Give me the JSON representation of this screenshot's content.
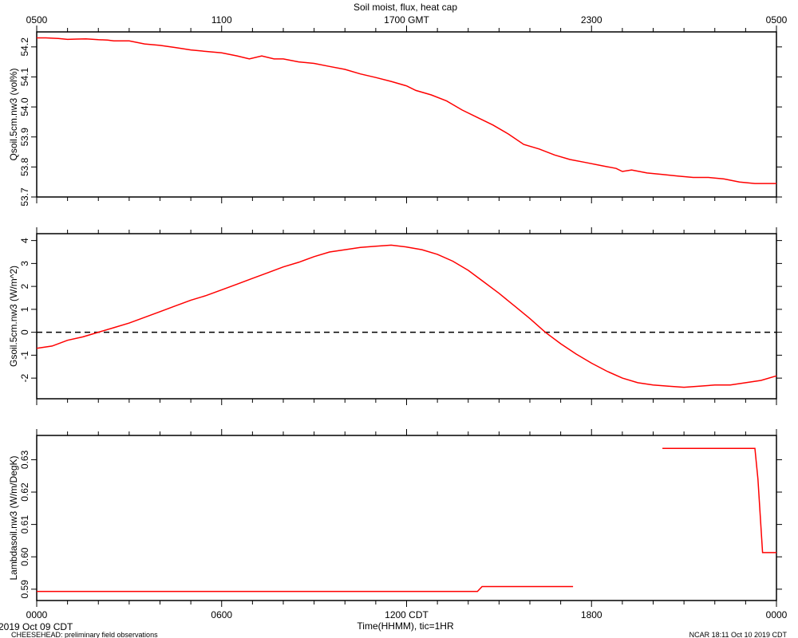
{
  "title": "Soil moist, flux, heat cap",
  "top_axis": {
    "tick_labels": [
      "0500",
      "1100",
      "1700 GMT",
      "2300",
      "0500"
    ]
  },
  "bottom_axis": {
    "tick_labels": [
      "0000",
      "0600",
      "1200 CDT",
      "1800",
      "0000"
    ],
    "label": "Time(HHMM), tic=1HR"
  },
  "footer": {
    "date": "2019 Oct 09 CDT",
    "project": "CHEESEHEAD: preliminary field observations",
    "stamp": "NCAR 18:11 Oct 10 2019 CDT"
  },
  "colors": {
    "series": "#ff0000",
    "axes": "#000000"
  },
  "chart_data": [
    {
      "type": "line",
      "ylabel": "Qsoil.5cm.nw3 (vol%)",
      "ylim": [
        53.7,
        54.25
      ],
      "yticks": [
        53.7,
        53.8,
        53.9,
        54.0,
        54.1,
        54.2
      ],
      "ytick_labels": [
        "53.7",
        "53.8",
        "53.9",
        "54.0",
        "54.1",
        "54.2"
      ],
      "xlim": [
        0,
        24
      ],
      "series": [
        {
          "x": [
            0,
            0.3,
            0.7,
            1.0,
            1.3,
            1.6,
            2.0,
            2.3,
            2.5,
            3.0,
            3.5,
            4.0,
            4.5,
            5.0,
            5.5,
            6.0,
            6.5,
            6.9,
            7.3,
            7.7,
            8.0,
            8.5,
            9.0,
            9.5,
            10.0,
            10.5,
            11.0,
            11.5,
            12.0,
            12.3,
            12.8,
            13.3,
            13.8,
            14.3,
            14.8,
            15.3,
            15.8,
            16.3,
            16.8,
            17.3,
            17.8,
            18.3,
            18.8,
            19.0,
            19.3,
            19.8,
            20.3,
            20.8,
            21.3,
            21.8,
            22.3,
            22.8,
            23.3,
            23.6,
            24.0
          ],
          "y": [
            54.23,
            54.23,
            54.228,
            54.225,
            54.226,
            54.227,
            54.224,
            54.223,
            54.22,
            54.22,
            54.21,
            54.205,
            54.198,
            54.19,
            54.185,
            54.18,
            54.17,
            54.16,
            54.17,
            54.16,
            54.16,
            54.15,
            54.145,
            54.135,
            54.125,
            54.11,
            54.098,
            54.085,
            54.07,
            54.055,
            54.04,
            54.02,
            53.99,
            53.965,
            53.94,
            53.91,
            53.875,
            53.86,
            53.84,
            53.825,
            53.815,
            53.805,
            53.795,
            53.785,
            53.79,
            53.78,
            53.775,
            53.77,
            53.765,
            53.765,
            53.76,
            53.75,
            53.745,
            53.745,
            53.745
          ]
        }
      ]
    },
    {
      "type": "line",
      "ylabel": "Gsoil.5cm.nw3 (W/m^2)",
      "ylim": [
        -2.9,
        4.3
      ],
      "yticks": [
        -2,
        -1,
        0,
        1,
        2,
        3,
        4
      ],
      "ytick_labels": [
        "-2",
        "-1",
        "0",
        "1",
        "2",
        "3",
        "4"
      ],
      "xlim": [
        0,
        24
      ],
      "reference_line": 0,
      "series": [
        {
          "x": [
            0,
            0.5,
            1.0,
            1.5,
            2.0,
            2.5,
            3.0,
            3.5,
            4.0,
            4.5,
            5.0,
            5.5,
            6.0,
            6.5,
            7.0,
            7.5,
            8.0,
            8.5,
            9.0,
            9.5,
            10.0,
            10.5,
            11.0,
            11.5,
            12.0,
            12.5,
            13.0,
            13.5,
            14.0,
            14.5,
            15.0,
            15.5,
            16.0,
            16.5,
            17.0,
            17.5,
            18.0,
            18.5,
            19.0,
            19.5,
            20.0,
            20.5,
            21.0,
            21.5,
            22.0,
            22.5,
            23.0,
            23.5,
            24.0
          ],
          "y": [
            -0.7,
            -0.6,
            -0.35,
            -0.2,
            0.0,
            0.2,
            0.4,
            0.65,
            0.9,
            1.15,
            1.4,
            1.6,
            1.85,
            2.1,
            2.35,
            2.6,
            2.85,
            3.05,
            3.3,
            3.5,
            3.6,
            3.7,
            3.75,
            3.8,
            3.72,
            3.6,
            3.4,
            3.1,
            2.7,
            2.2,
            1.7,
            1.15,
            0.6,
            0.0,
            -0.5,
            -0.95,
            -1.35,
            -1.7,
            -2.0,
            -2.2,
            -2.3,
            -2.35,
            -2.4,
            -2.35,
            -2.3,
            -2.3,
            -2.2,
            -2.1,
            -1.9
          ]
        }
      ]
    },
    {
      "type": "line",
      "ylabel": "Lambdasoil.nw3 (W/m/DegK)",
      "ylim": [
        0.5865,
        0.6375
      ],
      "yticks": [
        0.59,
        0.6,
        0.61,
        0.62,
        0.63
      ],
      "ytick_labels": [
        "0.59",
        "0.60",
        "0.61",
        "0.62",
        "0.63"
      ],
      "xlim": [
        0,
        24
      ],
      "series": [
        {
          "x": [
            0,
            14.3,
            14.45,
            17.4,
            null,
            20.3,
            23.3,
            23.4,
            23.55,
            24.0
          ],
          "y": [
            0.5893,
            0.5893,
            0.5908,
            0.5908,
            null,
            0.6335,
            0.6335,
            0.624,
            0.6013,
            0.6013
          ]
        }
      ]
    }
  ]
}
